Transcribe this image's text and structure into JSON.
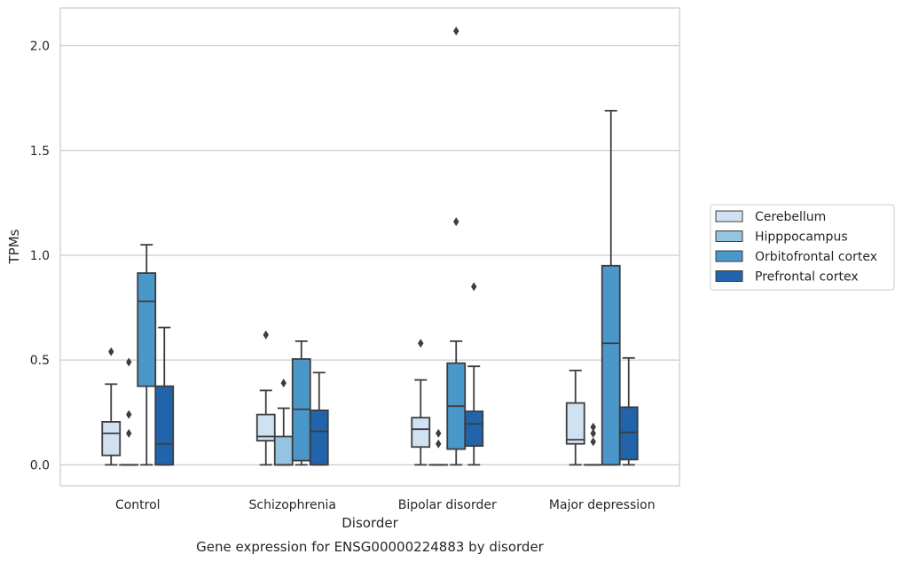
{
  "chart_data": {
    "type": "box",
    "xlabel": "Disorder",
    "ylabel": "TPMs",
    "caption": "Gene expression for ENSG00000224883 by disorder",
    "ylim": [
      -0.1,
      2.18
    ],
    "yticks": [
      0.0,
      0.5,
      1.0,
      1.5,
      2.0
    ],
    "ytick_labels": [
      "0.0",
      "0.5",
      "1.0",
      "1.5",
      "2.0"
    ],
    "grid": "horizontal",
    "legend_position": "right",
    "categories": [
      "Control",
      "Schizophrenia",
      "Bipolar disorder",
      "Major depression"
    ],
    "series": [
      {
        "name": "Cerebellum",
        "color": "#d0e1f2",
        "boxes": [
          {
            "whislo": 0.0,
            "q1": 0.045,
            "med": 0.15,
            "q3": 0.205,
            "whishi": 0.385,
            "fliers": [
              0.54
            ]
          },
          {
            "whislo": 0.0,
            "q1": 0.115,
            "med": 0.135,
            "q3": 0.24,
            "whishi": 0.355,
            "fliers": [
              0.62
            ]
          },
          {
            "whislo": 0.0,
            "q1": 0.085,
            "med": 0.17,
            "q3": 0.225,
            "whishi": 0.405,
            "fliers": [
              0.58
            ]
          },
          {
            "whislo": 0.0,
            "q1": 0.1,
            "med": 0.12,
            "q3": 0.295,
            "whishi": 0.45,
            "fliers": []
          }
        ]
      },
      {
        "name": "Hipppocampus",
        "color": "#94c4df",
        "boxes": [
          {
            "whislo": 0.0,
            "q1": 0.0,
            "med": 0.0,
            "q3": 0.0,
            "whishi": 0.0,
            "fliers": [
              0.15,
              0.24,
              0.49
            ]
          },
          {
            "whislo": 0.0,
            "q1": 0.0,
            "med": 0.0,
            "q3": 0.135,
            "whishi": 0.27,
            "fliers": [
              0.39
            ]
          },
          {
            "whislo": 0.0,
            "q1": 0.0,
            "med": 0.0,
            "q3": 0.0,
            "whishi": 0.0,
            "fliers": [
              0.1,
              0.15
            ]
          },
          {
            "whislo": 0.0,
            "q1": 0.0,
            "med": 0.0,
            "q3": 0.0,
            "whishi": 0.0,
            "fliers": [
              0.11,
              0.15,
              0.18
            ]
          }
        ]
      },
      {
        "name": "Orbitofrontal cortex",
        "color": "#4a98c9",
        "boxes": [
          {
            "whislo": 0.0,
            "q1": 0.375,
            "med": 0.78,
            "q3": 0.915,
            "whishi": 1.05,
            "fliers": []
          },
          {
            "whislo": 0.0,
            "q1": 0.02,
            "med": 0.265,
            "q3": 0.505,
            "whishi": 0.59,
            "fliers": []
          },
          {
            "whislo": 0.0,
            "q1": 0.075,
            "med": 0.28,
            "q3": 0.485,
            "whishi": 0.59,
            "fliers": [
              1.16,
              2.07
            ]
          },
          {
            "whislo": 0.0,
            "q1": 0.0,
            "med": 0.58,
            "q3": 0.95,
            "whishi": 1.69,
            "fliers": []
          }
        ]
      },
      {
        "name": "Prefrontal cortex",
        "color": "#2164ab",
        "boxes": [
          {
            "whislo": 0.0,
            "q1": 0.0,
            "med": 0.1,
            "q3": 0.375,
            "whishi": 0.655,
            "fliers": []
          },
          {
            "whislo": 0.0,
            "q1": 0.0,
            "med": 0.16,
            "q3": 0.26,
            "whishi": 0.44,
            "fliers": []
          },
          {
            "whislo": 0.0,
            "q1": 0.09,
            "med": 0.195,
            "q3": 0.255,
            "whishi": 0.47,
            "fliers": [
              0.85
            ]
          },
          {
            "whislo": 0.0,
            "q1": 0.025,
            "med": 0.155,
            "q3": 0.275,
            "whishi": 0.51,
            "fliers": []
          }
        ]
      }
    ]
  }
}
